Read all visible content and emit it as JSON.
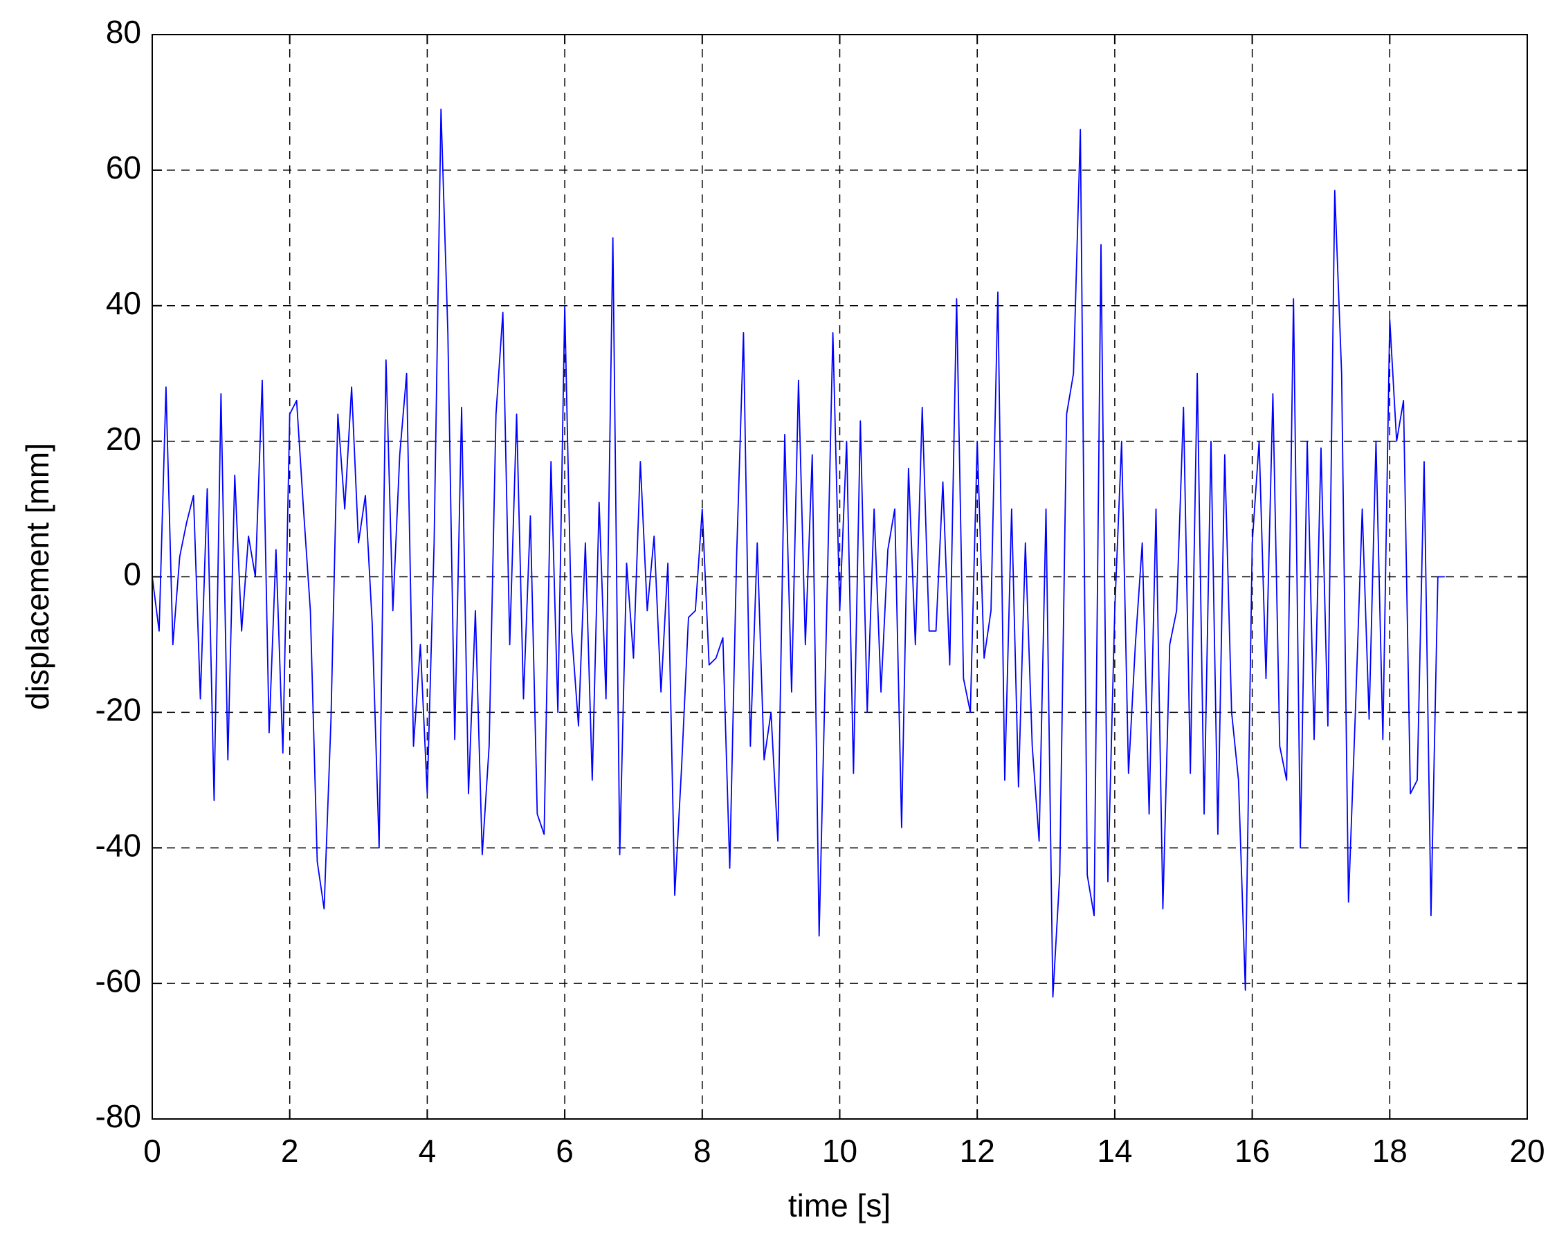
{
  "chart_data": {
    "type": "line",
    "xlabel": "time [s]",
    "ylabel": "displacement [mm]",
    "color": "#0000ff",
    "grid": true,
    "xlim": [
      0,
      20
    ],
    "xticks": [
      0,
      2,
      4,
      6,
      8,
      10,
      12,
      14,
      16,
      18,
      20
    ],
    "ylim": [
      -80,
      80
    ],
    "yticks": [
      -80,
      -60,
      -40,
      -20,
      0,
      20,
      40,
      60,
      80
    ],
    "x": [
      0,
      0.1,
      0.2,
      0.3,
      0.4,
      0.5,
      0.6,
      0.7,
      0.8,
      0.9,
      1,
      1.1,
      1.2,
      1.3,
      1.4,
      1.5,
      1.6,
      1.7,
      1.8,
      1.9,
      2,
      2.1,
      2.2,
      2.3,
      2.4,
      2.5,
      2.6,
      2.7,
      2.8,
      2.9,
      3,
      3.1,
      3.2,
      3.3,
      3.4,
      3.5,
      3.6,
      3.7,
      3.8,
      3.9,
      4,
      4.1,
      4.2,
      4.3,
      4.4,
      4.5,
      4.6,
      4.7,
      4.8,
      4.9,
      5,
      5.1,
      5.2,
      5.3,
      5.4,
      5.5,
      5.6,
      5.7,
      5.8,
      5.9,
      6,
      6.1,
      6.2,
      6.3,
      6.4,
      6.5,
      6.6,
      6.7,
      6.8,
      6.9,
      7,
      7.1,
      7.2,
      7.3,
      7.4,
      7.5,
      7.6,
      7.7,
      7.8,
      7.9,
      8,
      8.1,
      8.2,
      8.3,
      8.4,
      8.5,
      8.6,
      8.7,
      8.8,
      8.9,
      9,
      9.1,
      9.2,
      9.3,
      9.4,
      9.5,
      9.6,
      9.7,
      9.8,
      9.9,
      10,
      10.1,
      10.2,
      10.3,
      10.4,
      10.5,
      10.6,
      10.7,
      10.8,
      10.9,
      11,
      11.1,
      11.2,
      11.3,
      11.4,
      11.5,
      11.6,
      11.7,
      11.8,
      11.9,
      12,
      12.1,
      12.2,
      12.3,
      12.4,
      12.5,
      12.6,
      12.7,
      12.8,
      12.9,
      13,
      13.1,
      13.2,
      13.3,
      13.4,
      13.5,
      13.6,
      13.7,
      13.8,
      13.9,
      14,
      14.1,
      14.2,
      14.3,
      14.4,
      14.5,
      14.6,
      14.7,
      14.8,
      14.9,
      15,
      15.1,
      15.2,
      15.3,
      15.4,
      15.5,
      15.6,
      15.7,
      15.8,
      15.9,
      16,
      16.1,
      16.2,
      16.3,
      16.4,
      16.5,
      16.6,
      16.7,
      16.8,
      16.9,
      17,
      17.1,
      17.2,
      17.3,
      17.4,
      17.5,
      17.6,
      17.7,
      17.8,
      17.9,
      18,
      18.1,
      18.2,
      18.3,
      18.4,
      18.5,
      18.6,
      18.7,
      18.8
    ],
    "values": [
      0,
      -8,
      28,
      -10,
      3,
      8,
      12,
      -18,
      13,
      -33,
      27,
      -27,
      15,
      -8,
      6,
      0,
      29,
      -23,
      4,
      -26,
      24,
      26,
      10,
      -5,
      -42,
      -49,
      -21,
      24,
      10,
      28,
      5,
      12,
      -7,
      -40,
      32,
      -5,
      18,
      30,
      -25,
      -10,
      -32,
      5,
      69,
      36,
      -24,
      25,
      -32,
      -5,
      -41,
      -25,
      24,
      39,
      -10,
      24,
      -18,
      9,
      -35,
      -38,
      17,
      -20,
      40,
      -8,
      -22,
      5,
      -30,
      11,
      -18,
      50,
      -41,
      2,
      -12,
      17,
      -5,
      6,
      -17,
      2,
      -47,
      -28,
      -6,
      -5,
      10,
      -13,
      -12,
      -9,
      -43,
      3,
      36,
      -25,
      5,
      -27,
      -20,
      -39,
      21,
      -17,
      29,
      -10,
      18,
      -53,
      -10,
      36,
      -5,
      20,
      -29,
      23,
      -20,
      10,
      -17,
      4,
      10,
      -37,
      16,
      -10,
      25,
      -8,
      -8,
      14,
      -13,
      41,
      -15,
      -20,
      20,
      -12,
      -5,
      42,
      -30,
      10,
      -31,
      5,
      -25,
      -39,
      10,
      -62,
      -44,
      24,
      30,
      66,
      -44,
      -50,
      49,
      -45,
      -5,
      20,
      -29,
      -10,
      5,
      -35,
      10,
      -49,
      -10,
      -5,
      25,
      -29,
      30,
      -35,
      20,
      -38,
      18,
      -20,
      -30,
      -61,
      5,
      20,
      -15,
      27,
      -25,
      -30,
      41,
      -40,
      20,
      -24,
      19,
      -22,
      57,
      30,
      -48,
      -20,
      10,
      -21,
      20,
      -24,
      38,
      20,
      26,
      -32,
      -30,
      17,
      -50,
      0,
      0
    ]
  }
}
